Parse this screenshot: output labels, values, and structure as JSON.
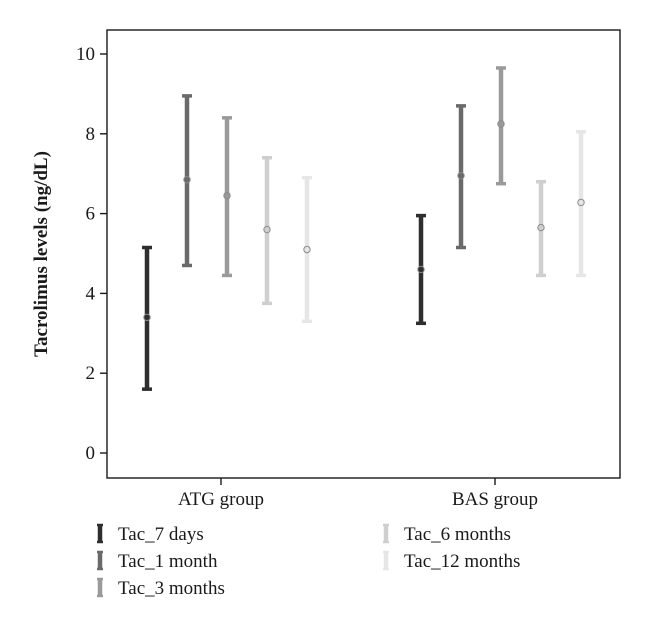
{
  "chart_data": {
    "type": "errorbar",
    "title": "",
    "xlabel": "",
    "ylabel": "Tacrolimus levels (ng/dL)",
    "ylim": [
      0,
      10
    ],
    "yticks": [
      "0",
      "2",
      "4",
      "6",
      "8",
      "10"
    ],
    "categories": [
      "ATG group",
      "BAS group"
    ],
    "grid": false,
    "legend_position": "bottom",
    "series": [
      {
        "name": "Tac_7 days",
        "color": "#2e2e2e",
        "mean": [
          3.4,
          4.6
        ],
        "lower": [
          1.6,
          3.25
        ],
        "upper": [
          5.15,
          5.95
        ]
      },
      {
        "name": "Tac_1 month",
        "color": "#6a6a6a",
        "mean": [
          6.85,
          6.95
        ],
        "lower": [
          4.7,
          5.15
        ],
        "upper": [
          8.95,
          8.7
        ]
      },
      {
        "name": "Tac_3 months",
        "color": "#9a9a9a",
        "mean": [
          6.45,
          8.25
        ],
        "lower": [
          4.45,
          6.75
        ],
        "upper": [
          8.4,
          9.65
        ]
      },
      {
        "name": "Tac_6 months",
        "color": "#cfcfcf",
        "mean": [
          5.6,
          5.65
        ],
        "lower": [
          3.75,
          4.45
        ],
        "upper": [
          7.4,
          6.8
        ]
      },
      {
        "name": "Tac_12 months",
        "color": "#e6e6e6",
        "mean": [
          5.1,
          6.28
        ],
        "lower": [
          3.3,
          4.45
        ],
        "upper": [
          6.9,
          8.05
        ]
      }
    ]
  }
}
